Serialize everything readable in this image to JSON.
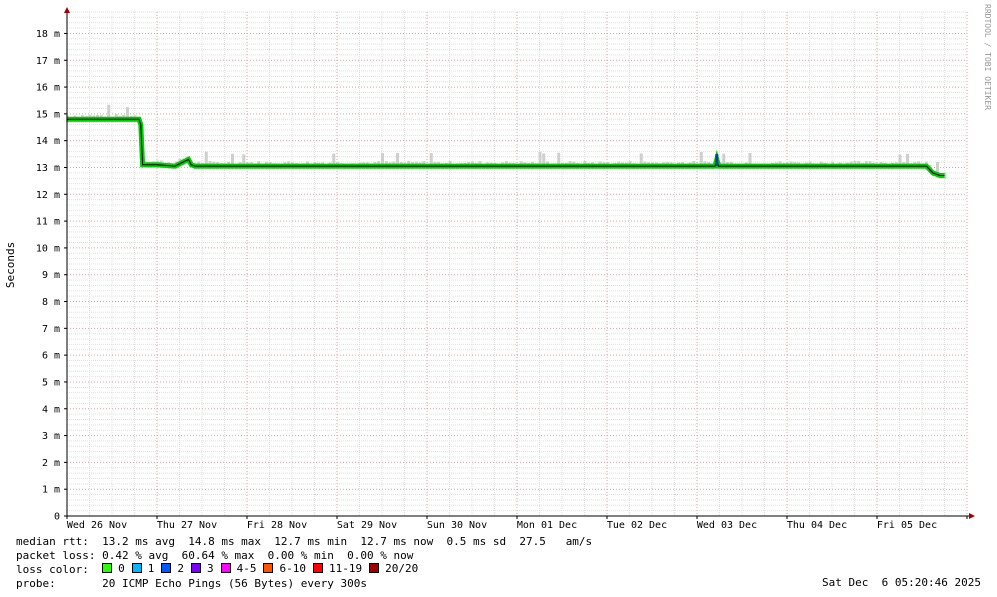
{
  "chart_data": {
    "type": "line",
    "ylabel": "Seconds",
    "yunit": "ms",
    "ylim": [
      0,
      18.8
    ],
    "yticks": [
      {
        "v": 0,
        "label": "0"
      },
      {
        "v": 1,
        "label": "1 m"
      },
      {
        "v": 2,
        "label": "2 m"
      },
      {
        "v": 3,
        "label": "3 m"
      },
      {
        "v": 4,
        "label": "4 m"
      },
      {
        "v": 5,
        "label": "5 m"
      },
      {
        "v": 6,
        "label": "6 m"
      },
      {
        "v": 7,
        "label": "7 m"
      },
      {
        "v": 8,
        "label": "8 m"
      },
      {
        "v": 9,
        "label": "9 m"
      },
      {
        "v": 10,
        "label": "10 m"
      },
      {
        "v": 11,
        "label": "11 m"
      },
      {
        "v": 12,
        "label": "12 m"
      },
      {
        "v": 13,
        "label": "13 m"
      },
      {
        "v": 14,
        "label": "14 m"
      },
      {
        "v": 15,
        "label": "15 m"
      },
      {
        "v": 16,
        "label": "16 m"
      },
      {
        "v": 17,
        "label": "17 m"
      },
      {
        "v": 18,
        "label": "18 m"
      }
    ],
    "xlim": [
      0,
      10
    ],
    "xunit": "days since Wed 26 Nov 00:00",
    "xticks": [
      "Wed 26 Nov",
      "Thu 27 Nov",
      "Fri 28 Nov",
      "Sat 29 Nov",
      "Sun 30 Nov",
      "Mon 01 Dec",
      "Tue 02 Dec",
      "Wed 03 Dec",
      "Thu 04 Dec",
      "Fri 05 Dec"
    ],
    "grid": true,
    "series": [
      {
        "name": "median rtt",
        "color": "#00cc00",
        "x": [
          0.0,
          0.5,
          0.8,
          0.82,
          0.84,
          1.0,
          1.2,
          1.35,
          1.38,
          1.42,
          1.5,
          2.0,
          3.0,
          4.0,
          5.0,
          6.0,
          7.0,
          7.2,
          7.22,
          7.24,
          8.0,
          9.0,
          9.55,
          9.62,
          9.7,
          9.75
        ],
        "y": [
          14.8,
          14.8,
          14.8,
          14.6,
          13.1,
          13.1,
          13.05,
          13.3,
          13.1,
          13.05,
          13.05,
          13.05,
          13.05,
          13.05,
          13.05,
          13.05,
          13.05,
          13.05,
          13.3,
          13.05,
          13.05,
          13.05,
          13.05,
          12.8,
          12.7,
          12.7
        ]
      }
    ],
    "spike": {
      "x": 7.22,
      "ylow": 13.05,
      "yhigh": 13.5,
      "color": "#0b3ea8"
    },
    "loss_colors": [
      "#26ff00",
      "#00b8ff",
      "#0059ff",
      "#7e00ff",
      "#ff00ff",
      "#ff5500",
      "#ff0000",
      "#a10000"
    ]
  },
  "side_text": "RRDTOOL / TOBI OETIKER",
  "legend": {
    "median_rtt_label": "median rtt:",
    "median_rtt_values": "13.2 ms avg  14.8 ms max  12.7 ms min  12.7 ms now  0.5 ms sd  27.5   am/s",
    "packet_loss_label": "packet loss:",
    "packet_loss_values": "0.42 % avg  60.64 % max  0.00 % min  0.00 % now",
    "loss_color_label": "loss color:",
    "loss_items": [
      {
        "label": "0",
        "color": "#26ff00"
      },
      {
        "label": "1",
        "color": "#00b8ff"
      },
      {
        "label": "2",
        "color": "#0059ff"
      },
      {
        "label": "3",
        "color": "#7e00ff"
      },
      {
        "label": "4-5",
        "color": "#ff00ff"
      },
      {
        "label": "6-10",
        "color": "#ff5500"
      },
      {
        "label": "11-19",
        "color": "#ff0000"
      },
      {
        "label": "20/20",
        "color": "#a10000"
      }
    ],
    "probe_label": "probe:",
    "probe_value": "20 ICMP Echo Pings (56 Bytes) every 300s",
    "timestamp": "Sat Dec  6 05:20:46 2025"
  }
}
